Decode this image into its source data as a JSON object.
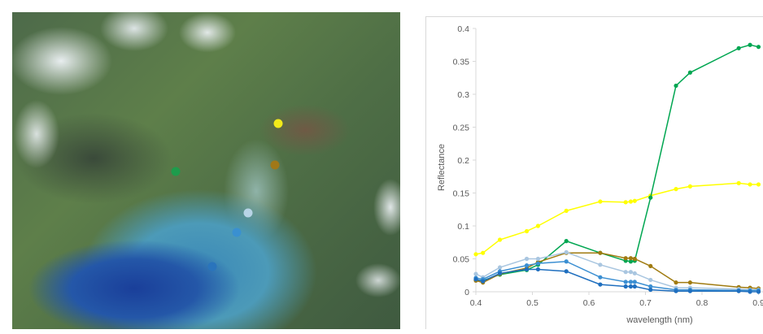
{
  "image": {
    "sample_points": [
      {
        "color": "#f2ea1a"
      },
      {
        "color": "#a07818"
      },
      {
        "color": "#1e9c4c"
      },
      {
        "color": "#b8d4e6"
      },
      {
        "color": "#3a90d0"
      },
      {
        "color": "#2a74bc"
      }
    ]
  },
  "chart_data": {
    "type": "line",
    "xlabel": "wavelength (nm)",
    "ylabel": "Reflectance",
    "xlim": [
      0.4,
      0.91
    ],
    "ylim": [
      0,
      0.4
    ],
    "xticks": [
      "0.4",
      "0.5",
      "0.6",
      "0.7",
      "0.8",
      "0.9"
    ],
    "yticks": [
      "0",
      "0.05",
      "0.1",
      "0.15",
      "0.2",
      "0.25",
      "0.3",
      "0.35",
      "0.4"
    ],
    "grid": false,
    "x": [
      0.4,
      0.4125,
      0.4425,
      0.49,
      0.51,
      0.56,
      0.62,
      0.665,
      0.674,
      0.681,
      0.709,
      0.754,
      0.779,
      0.865,
      0.885,
      0.9
    ],
    "series": [
      {
        "color": "#ffff00",
        "values": [
          0.057,
          0.059,
          0.079,
          0.092,
          0.1,
          0.123,
          0.137,
          0.136,
          0.137,
          0.138,
          0.146,
          0.156,
          0.16,
          0.165,
          0.163,
          0.163
        ]
      },
      {
        "color": "#00a651",
        "values": [
          0.018,
          0.017,
          0.026,
          0.033,
          0.041,
          0.077,
          0.059,
          0.047,
          0.046,
          0.047,
          0.143,
          0.313,
          0.333,
          0.37,
          0.375,
          0.372
        ]
      },
      {
        "color": "#a07b10",
        "values": [
          0.017,
          0.014,
          0.027,
          0.036,
          0.045,
          0.059,
          0.059,
          0.051,
          0.051,
          0.05,
          0.039,
          0.014,
          0.014,
          0.007,
          0.006,
          0.005
        ]
      },
      {
        "color": "#a9c6e0",
        "values": [
          0.027,
          0.022,
          0.037,
          0.05,
          0.05,
          0.06,
          0.041,
          0.03,
          0.03,
          0.028,
          0.018,
          0.006,
          0.006,
          0.004,
          0.003,
          0.003
        ]
      },
      {
        "color": "#3b8fd2",
        "values": [
          0.021,
          0.019,
          0.031,
          0.04,
          0.043,
          0.046,
          0.022,
          0.015,
          0.015,
          0.015,
          0.008,
          0.003,
          0.003,
          0.002,
          0.002,
          0.002
        ]
      },
      {
        "color": "#1f6fbf",
        "values": [
          0.019,
          0.016,
          0.028,
          0.034,
          0.034,
          0.031,
          0.011,
          0.008,
          0.008,
          0.008,
          0.003,
          0.001,
          0.001,
          0.001,
          0.0,
          0.0
        ]
      }
    ]
  }
}
